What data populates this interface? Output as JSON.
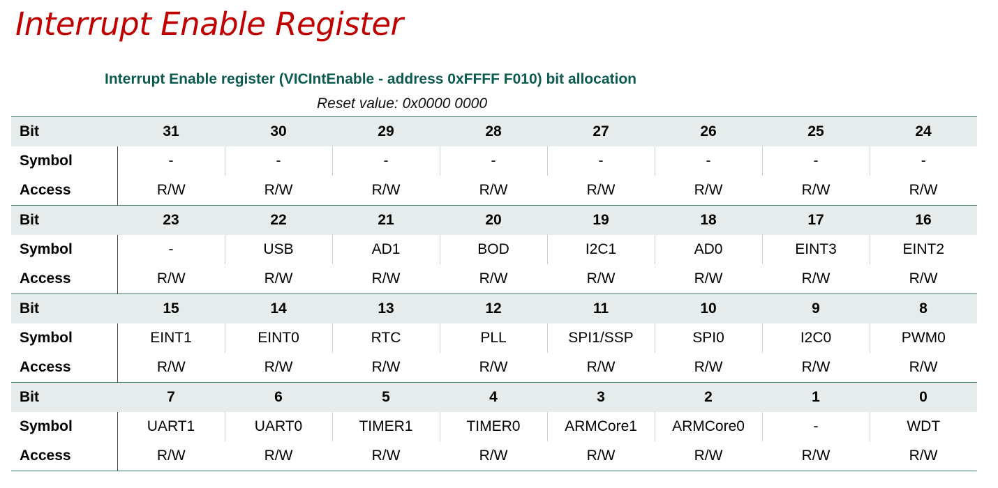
{
  "slide_title": "Interrupt Enable Register",
  "caption": "Interrupt Enable register (VICIntEnable - address 0xFFFF F010) bit allocation",
  "reset_value": "Reset value: 0x0000 0000",
  "row_labels": {
    "bit": "Bit",
    "symbol": "Symbol",
    "access": "Access"
  },
  "groups": [
    {
      "bits": [
        "31",
        "30",
        "29",
        "28",
        "27",
        "26",
        "25",
        "24"
      ],
      "symbols": [
        "-",
        "-",
        "-",
        "-",
        "-",
        "-",
        "-",
        "-"
      ],
      "access": [
        "R/W",
        "R/W",
        "R/W",
        "R/W",
        "R/W",
        "R/W",
        "R/W",
        "R/W"
      ]
    },
    {
      "bits": [
        "23",
        "22",
        "21",
        "20",
        "19",
        "18",
        "17",
        "16"
      ],
      "symbols": [
        "-",
        "USB",
        "AD1",
        "BOD",
        "I2C1",
        "AD0",
        "EINT3",
        "EINT2"
      ],
      "access": [
        "R/W",
        "R/W",
        "R/W",
        "R/W",
        "R/W",
        "R/W",
        "R/W",
        "R/W"
      ]
    },
    {
      "bits": [
        "15",
        "14",
        "13",
        "12",
        "11",
        "10",
        "9",
        "8"
      ],
      "symbols": [
        "EINT1",
        "EINT0",
        "RTC",
        "PLL",
        "SPI1/SSP",
        "SPI0",
        "I2C0",
        "PWM0"
      ],
      "access": [
        "R/W",
        "R/W",
        "R/W",
        "R/W",
        "R/W",
        "R/W",
        "R/W",
        "R/W"
      ]
    },
    {
      "bits": [
        "7",
        "6",
        "5",
        "4",
        "3",
        "2",
        "1",
        "0"
      ],
      "symbols": [
        "UART1",
        "UART0",
        "TIMER1",
        "TIMER0",
        "ARMCore1",
        "ARMCore0",
        "-",
        "WDT"
      ],
      "access": [
        "R/W",
        "R/W",
        "R/W",
        "R/W",
        "R/W",
        "R/W",
        "R/W",
        "R/W"
      ]
    }
  ]
}
